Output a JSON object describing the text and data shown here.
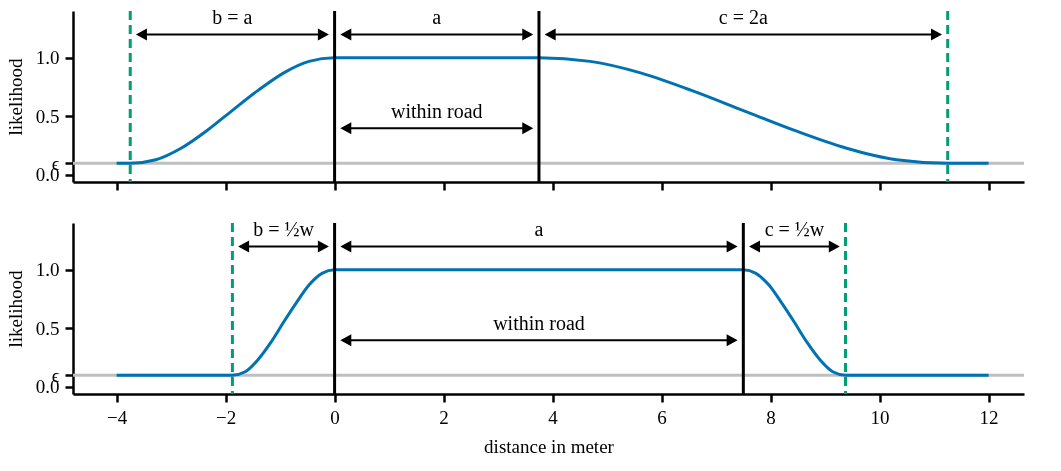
{
  "chart_data": [
    {
      "type": "line",
      "ylabel": "likelihood",
      "x": [
        -4,
        -3.75,
        -3.28,
        -2.81,
        -2.34,
        -1.88,
        -1.41,
        -0.94,
        -0.47,
        0,
        3.75,
        4.69,
        5.63,
        6.56,
        7.5,
        8.44,
        9.38,
        10.31,
        11.25,
        12
      ],
      "series": [
        {
          "color": "#0072b2",
          "values": [
            0.1,
            0.1,
            0.13,
            0.23,
            0.38,
            0.55,
            0.72,
            0.87,
            0.97,
            1,
            1,
            0.97,
            0.87,
            0.72,
            0.55,
            0.38,
            0.23,
            0.13,
            0.1,
            0.1
          ]
        }
      ],
      "xlim": [
        -4.8,
        12.65
      ],
      "ylim": [
        -0.06,
        1.4
      ],
      "xticks": [
        {
          "value": -4,
          "label": null
        },
        {
          "value": -2,
          "label": null
        },
        {
          "value": 0,
          "label": null
        },
        {
          "value": 2,
          "label": null
        },
        {
          "value": 4,
          "label": null
        },
        {
          "value": 6,
          "label": null
        },
        {
          "value": 8,
          "label": null
        },
        {
          "value": 10,
          "label": null
        },
        {
          "value": 12,
          "label": null
        }
      ],
      "yticks": [
        {
          "value": 0,
          "label": "0.0"
        },
        {
          "value": 0.1,
          "label": "ϵ"
        },
        {
          "value": 0.5,
          "label": "0.5"
        },
        {
          "value": 1,
          "label": "1.0"
        }
      ],
      "tick_labels": "y",
      "ref_lines": [
        {
          "axis": "y",
          "value": 0.1,
          "color": "#bfbfbf"
        },
        {
          "axis": "x",
          "value": -3.75,
          "color": "#009e73",
          "line_style": "dashed"
        },
        {
          "axis": "x",
          "value": 0,
          "color": "#000000"
        },
        {
          "axis": "x",
          "value": 3.75,
          "color": "#000000"
        },
        {
          "axis": "x",
          "value": 11.25,
          "color": "#009e73",
          "line_style": "dashed"
        }
      ],
      "annotations": [
        "b = a",
        "a",
        "c = 2a",
        "within road"
      ]
    },
    {
      "type": "line",
      "ylabel": "likelihood",
      "xlabel": "distance in meter",
      "x": [
        -4,
        -1.88,
        -1.64,
        -1.41,
        -1.17,
        -0.94,
        -0.7,
        -0.47,
        -0.23,
        0,
        7.5,
        7.73,
        7.97,
        8.2,
        8.44,
        8.67,
        8.91,
        9.14,
        9.38,
        12
      ],
      "series": [
        {
          "color": "#0072b2",
          "values": [
            0.1,
            0.1,
            0.13,
            0.23,
            0.38,
            0.55,
            0.72,
            0.87,
            0.97,
            1,
            1,
            0.97,
            0.87,
            0.72,
            0.55,
            0.38,
            0.23,
            0.13,
            0.1,
            0.1
          ]
        }
      ],
      "xlim": [
        -4.8,
        12.65
      ],
      "ylim": [
        -0.06,
        1.4
      ],
      "xticks": [
        {
          "value": -4,
          "label": "−4"
        },
        {
          "value": -2,
          "label": "−2"
        },
        0,
        2,
        4,
        6,
        8,
        10,
        12
      ],
      "yticks": [
        {
          "value": 0,
          "label": "0.0"
        },
        {
          "value": 0.1,
          "label": "ϵ"
        },
        {
          "value": 0.5,
          "label": "0.5"
        },
        {
          "value": 1,
          "label": "1.0"
        }
      ],
      "ref_lines": [
        {
          "axis": "y",
          "value": 0.1,
          "color": "#bfbfbf"
        },
        {
          "axis": "x",
          "value": -1.875,
          "color": "#009e73",
          "line_style": "dashed"
        },
        {
          "axis": "x",
          "value": 0,
          "color": "#000000"
        },
        {
          "axis": "x",
          "value": 7.5,
          "color": "#000000"
        },
        {
          "axis": "x",
          "value": 9.375,
          "color": "#009e73",
          "line_style": "dashed"
        }
      ],
      "annotations": [
        "b = ½w",
        "a",
        "c = ½w",
        "within road"
      ]
    }
  ]
}
